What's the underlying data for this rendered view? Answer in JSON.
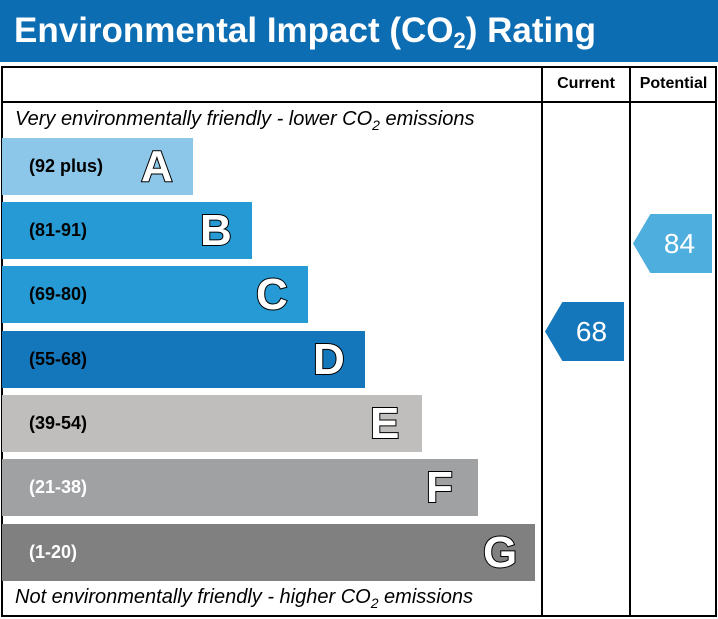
{
  "title": {
    "main": "Environmental Impact (CO",
    "sub": "2",
    "end": ") Rating"
  },
  "columns": {
    "current": "Current",
    "potential": "Potential"
  },
  "top_note": {
    "pre": "Very environmentally friendly - lower CO",
    "sub": "2",
    "post": " emissions"
  },
  "bottom_note": {
    "pre": "Not environmentally friendly - higher CO",
    "sub": "2",
    "post": " emissions"
  },
  "bands": [
    {
      "letter": "A",
      "range": "(92 plus)",
      "color": "#8cc6e8",
      "text_color": "#000000"
    },
    {
      "letter": "B",
      "range": "(81-91)",
      "color": "#269ad4",
      "text_color": "#000000"
    },
    {
      "letter": "C",
      "range": "(69-80)",
      "color": "#269ad4",
      "text_color": "#000000"
    },
    {
      "letter": "D",
      "range": "(55-68)",
      "color": "#1577bb",
      "text_color": "#000000"
    },
    {
      "letter": "E",
      "range": "(39-54)",
      "color": "#bfbebc",
      "text_color": "#000000"
    },
    {
      "letter": "F",
      "range": "(21-38)",
      "color": "#a0a1a3",
      "text_color": "#ffffff"
    },
    {
      "letter": "G",
      "range": "(1-20)",
      "color": "#808080",
      "text_color": "#ffffff"
    }
  ],
  "current": {
    "value": "68",
    "band": "D",
    "color": "#1577bb"
  },
  "potential": {
    "value": "84",
    "band": "B",
    "color": "#4eaede"
  }
}
